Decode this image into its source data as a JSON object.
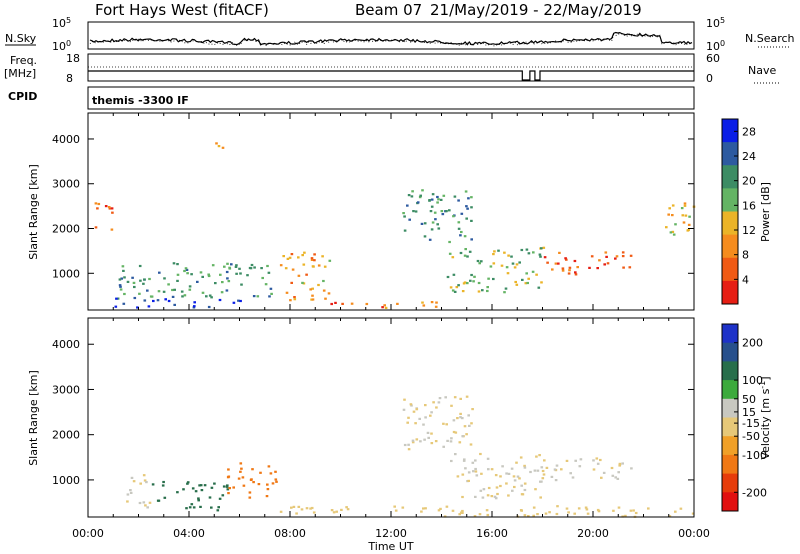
{
  "header": {
    "station": "Fort Hays West (fitACF)",
    "beam": "Beam 07",
    "date_range": "21/May/2019 - 22/May/2019"
  },
  "summary": {
    "nsky_label": "N.Sky",
    "nsearch_label": "N.Search",
    "freq_label": "Freq.",
    "freq_unit": "[MHz]",
    "nave_label": "Nave",
    "cpid_label": "CPID",
    "cpid_value": "themis -3300 IF",
    "noise_ticks_left": [
      "10^5",
      "10^0"
    ],
    "noise_ticks_right": [
      "10^5",
      "10^0"
    ],
    "freq_ticks": [
      "18",
      "8"
    ],
    "nave_ticks": [
      "60",
      "0"
    ]
  },
  "colors": {
    "power_scale": [
      "#0a1ee6",
      "#2d5aa0",
      "#3c8c64",
      "#64b464",
      "#ebb428",
      "#f58c1e",
      "#f05a14",
      "#e61e14"
    ],
    "velocity_scale": [
      "#1e32c8",
      "#28508c",
      "#286e4b",
      "#3caa3c",
      "#c8c8c0",
      "#e6c878",
      "#f0a028",
      "#f07814",
      "#e63c0a",
      "#e10f0f"
    ]
  },
  "chart_data": [
    {
      "type": "heatmap",
      "panel": "power",
      "xlabel": "",
      "ylabel": "Slant Range [km]",
      "x_ticks": [
        "00:00",
        "04:00",
        "08:00",
        "12:00",
        "16:00",
        "20:00",
        "00:00"
      ],
      "x_range_hours": [
        0,
        24
      ],
      "y_ticks": [
        1000,
        2000,
        3000,
        4000
      ],
      "ylim": [
        180,
        4580
      ],
      "colorbar": {
        "label": "Power [dB]",
        "ticks": [
          4,
          8,
          12,
          16,
          20,
          24,
          28
        ],
        "range": [
          0,
          30
        ]
      },
      "echo_regions": [
        {
          "t": [
            1.0,
            6.0
          ],
          "r": [
            250,
            500
          ],
          "value": 26
        },
        {
          "t": [
            1.2,
            7.6
          ],
          "r": [
            500,
            1250
          ],
          "value": 20
        },
        {
          "t": [
            7.6,
            9.6
          ],
          "r": [
            400,
            1500
          ],
          "value": 11
        },
        {
          "t": [
            9.6,
            14.0
          ],
          "r": [
            250,
            420
          ],
          "value": 8
        },
        {
          "t": [
            12.4,
            15.2
          ],
          "r": [
            1700,
            2900
          ],
          "value": 21
        },
        {
          "t": [
            14.2,
            18.0
          ],
          "r": [
            600,
            1600
          ],
          "value": 17
        },
        {
          "t": [
            18.0,
            21.5
          ],
          "r": [
            1000,
            1500
          ],
          "value": 6
        },
        {
          "t": [
            22.6,
            24.0
          ],
          "r": [
            1800,
            2600
          ],
          "value": 12
        },
        {
          "t": [
            0.2,
            1.0
          ],
          "r": [
            1900,
            2600
          ],
          "value": 7
        },
        {
          "t": [
            4.8,
            5.5
          ],
          "r": [
            3700,
            3950
          ],
          "value": 10
        }
      ]
    },
    {
      "type": "heatmap",
      "panel": "velocity",
      "xlabel": "Time UT",
      "ylabel": "Slant Range [km]",
      "x_ticks": [
        "00:00",
        "04:00",
        "08:00",
        "12:00",
        "16:00",
        "20:00",
        "00:00"
      ],
      "x_range_hours": [
        0,
        24
      ],
      "y_ticks": [
        1000,
        2000,
        3000,
        4000
      ],
      "ylim": [
        180,
        4580
      ],
      "colorbar": {
        "label": "Velocity [m s^-1]",
        "ticks": [
          200,
          100,
          50,
          15,
          -15,
          -50,
          -100,
          -200
        ],
        "range": [
          -250,
          250
        ]
      },
      "echo_regions": [
        {
          "t": [
            2.5,
            5.5
          ],
          "r": [
            350,
            1000
          ],
          "value": 120
        },
        {
          "t": [
            5.5,
            7.5
          ],
          "r": [
            600,
            1400
          ],
          "value": -110
        },
        {
          "t": [
            1.5,
            2.5
          ],
          "r": [
            400,
            1200
          ],
          "value": 0
        },
        {
          "t": [
            7.5,
            14.0
          ],
          "r": [
            250,
            450
          ],
          "value": -40
        },
        {
          "t": [
            12.4,
            15.2
          ],
          "r": [
            1700,
            2900
          ],
          "value": 0
        },
        {
          "t": [
            14.2,
            18.0
          ],
          "r": [
            600,
            1600
          ],
          "value": 0
        },
        {
          "t": [
            18.0,
            21.5
          ],
          "r": [
            1000,
            1500
          ],
          "value": 0
        },
        {
          "t": [
            14.0,
            24.0
          ],
          "r": [
            200,
            450
          ],
          "value": -40
        }
      ]
    }
  ]
}
